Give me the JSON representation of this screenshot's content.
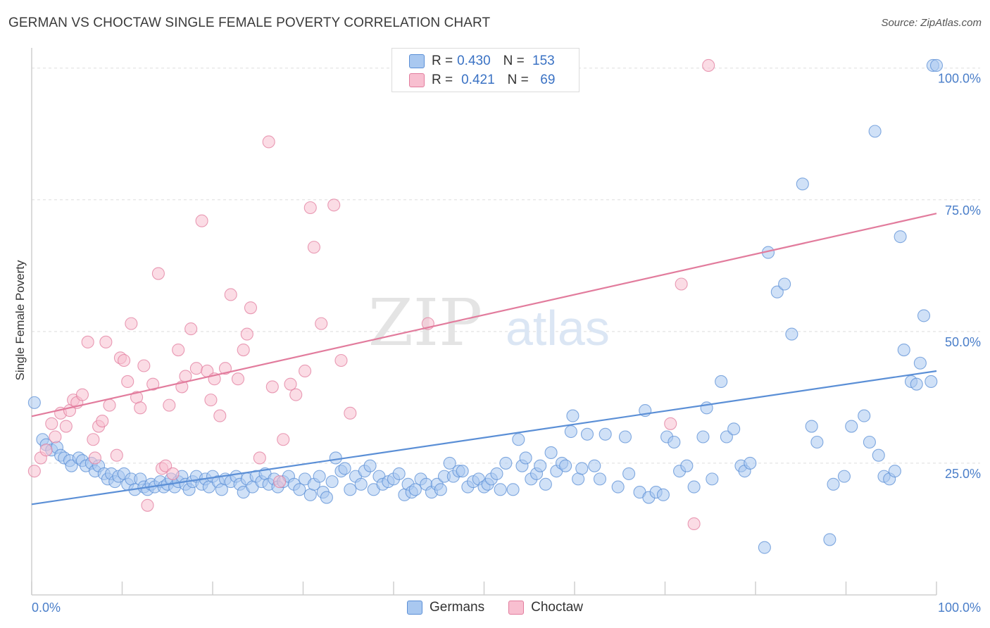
{
  "title": "GERMAN VS CHOCTAW SINGLE FEMALE POVERTY CORRELATION CHART",
  "source": "Source: ZipAtlas.com",
  "watermark": {
    "zip": "ZIP",
    "atlas": "atlas"
  },
  "legend_top": {
    "rows": [
      {
        "r_label": "R = ",
        "r_value": "0.430",
        "n_label": "N = ",
        "n_value": "153",
        "color": "#a9c8f0",
        "border": "#5b8fd6"
      },
      {
        "r_label": "R = ",
        "r_value": "0.421",
        "n_label": "N = ",
        "n_value": " 69",
        "color": "#f8bfd0",
        "border": "#e27c9d"
      }
    ]
  },
  "legend_bottom": [
    {
      "label": "Germans",
      "color": "#a9c8f0",
      "border": "#5b8fd6"
    },
    {
      "label": "Choctaw",
      "color": "#f8bfd0",
      "border": "#e27c9d"
    }
  ],
  "chart_data": {
    "type": "scatter",
    "title": "GERMAN VS CHOCTAW SINGLE FEMALE POVERTY CORRELATION CHART",
    "xlabel": "",
    "ylabel": "Single Female Poverty",
    "xlim": [
      0,
      100
    ],
    "ylim": [
      0,
      102.5
    ],
    "x_tick_labels": [
      "0.0%",
      "100.0%"
    ],
    "y_ticks": [
      25,
      50,
      75,
      100
    ],
    "y_tick_labels": [
      "25.0%",
      "50.0%",
      "75.0%",
      "100.0%"
    ],
    "grid": "horizontal dashed",
    "legend": "top-center",
    "series": [
      {
        "name": "Germans",
        "color": "#5b8fd6",
        "fill": "#a9c8f0",
        "trend": {
          "x": [
            0,
            100
          ],
          "y": [
            17.2,
            42.5
          ]
        },
        "points": [
          [
            0.3,
            36.5
          ],
          [
            1.2,
            29.5
          ],
          [
            1.6,
            28.5
          ],
          [
            2.2,
            27.5
          ],
          [
            2.8,
            28.0
          ],
          [
            3.2,
            26.5
          ],
          [
            3.6,
            26.0
          ],
          [
            4.2,
            25.5
          ],
          [
            4.4,
            24.5
          ],
          [
            5.2,
            26.0
          ],
          [
            5.6,
            25.5
          ],
          [
            6.0,
            24.5
          ],
          [
            6.6,
            25.0
          ],
          [
            7.0,
            23.5
          ],
          [
            7.4,
            24.5
          ],
          [
            8.0,
            23.0
          ],
          [
            8.4,
            22.0
          ],
          [
            8.8,
            23.0
          ],
          [
            9.2,
            21.5
          ],
          [
            9.6,
            22.5
          ],
          [
            10.2,
            23.0
          ],
          [
            10.6,
            21.0
          ],
          [
            11.0,
            22.0
          ],
          [
            11.4,
            20.0
          ],
          [
            12.0,
            22.0
          ],
          [
            12.4,
            20.5
          ],
          [
            12.8,
            20.0
          ],
          [
            13.2,
            21.0
          ],
          [
            13.6,
            20.5
          ],
          [
            14.2,
            21.5
          ],
          [
            14.6,
            20.5
          ],
          [
            15.0,
            21.0
          ],
          [
            15.4,
            22.0
          ],
          [
            15.8,
            20.5
          ],
          [
            16.2,
            21.5
          ],
          [
            16.6,
            22.5
          ],
          [
            17.0,
            21.0
          ],
          [
            17.4,
            20.0
          ],
          [
            17.8,
            21.5
          ],
          [
            18.2,
            22.5
          ],
          [
            18.8,
            21.0
          ],
          [
            19.2,
            22.0
          ],
          [
            19.6,
            20.5
          ],
          [
            20.0,
            22.5
          ],
          [
            20.6,
            21.5
          ],
          [
            21.0,
            20.0
          ],
          [
            21.4,
            22.0
          ],
          [
            22.0,
            21.5
          ],
          [
            22.6,
            22.5
          ],
          [
            23.0,
            21.0
          ],
          [
            23.4,
            19.5
          ],
          [
            23.8,
            22.0
          ],
          [
            24.4,
            20.5
          ],
          [
            24.8,
            22.5
          ],
          [
            25.4,
            21.5
          ],
          [
            25.8,
            23.0
          ],
          [
            26.2,
            21.0
          ],
          [
            26.8,
            22.0
          ],
          [
            27.2,
            20.5
          ],
          [
            27.8,
            21.5
          ],
          [
            28.4,
            22.5
          ],
          [
            29.0,
            21.0
          ],
          [
            29.6,
            20.0
          ],
          [
            30.2,
            22.0
          ],
          [
            30.8,
            19.0
          ],
          [
            31.2,
            21.0
          ],
          [
            31.8,
            22.5
          ],
          [
            32.2,
            19.5
          ],
          [
            32.6,
            18.5
          ],
          [
            33.2,
            21.5
          ],
          [
            33.6,
            26.0
          ],
          [
            34.2,
            23.5
          ],
          [
            34.6,
            24.0
          ],
          [
            35.2,
            20.0
          ],
          [
            35.8,
            22.5
          ],
          [
            36.4,
            21.0
          ],
          [
            36.8,
            23.5
          ],
          [
            37.4,
            24.5
          ],
          [
            37.8,
            20.0
          ],
          [
            38.4,
            22.5
          ],
          [
            38.8,
            21.0
          ],
          [
            39.4,
            21.5
          ],
          [
            40.0,
            22.0
          ],
          [
            40.6,
            23.0
          ],
          [
            41.2,
            19.0
          ],
          [
            41.6,
            21.0
          ],
          [
            42.0,
            19.5
          ],
          [
            42.4,
            20.0
          ],
          [
            43.0,
            22.0
          ],
          [
            43.6,
            21.0
          ],
          [
            44.2,
            19.5
          ],
          [
            44.8,
            21.0
          ],
          [
            45.2,
            20.0
          ],
          [
            45.6,
            22.5
          ],
          [
            46.2,
            25.0
          ],
          [
            46.6,
            22.5
          ],
          [
            47.2,
            23.5
          ],
          [
            47.6,
            23.5
          ],
          [
            48.2,
            20.5
          ],
          [
            48.8,
            21.5
          ],
          [
            49.4,
            22.0
          ],
          [
            50.0,
            20.5
          ],
          [
            50.4,
            21.0
          ],
          [
            50.8,
            22.0
          ],
          [
            51.4,
            23.0
          ],
          [
            51.8,
            20.0
          ],
          [
            52.4,
            25.0
          ],
          [
            53.2,
            20.0
          ],
          [
            53.8,
            29.5
          ],
          [
            54.2,
            24.5
          ],
          [
            54.6,
            26.0
          ],
          [
            55.2,
            22.0
          ],
          [
            55.8,
            23.0
          ],
          [
            56.2,
            24.5
          ],
          [
            56.8,
            21.0
          ],
          [
            57.4,
            27.0
          ],
          [
            58.0,
            23.5
          ],
          [
            58.6,
            25.0
          ],
          [
            59.0,
            24.5
          ],
          [
            59.6,
            31.0
          ],
          [
            59.8,
            34.0
          ],
          [
            60.4,
            22.0
          ],
          [
            60.8,
            24.0
          ],
          [
            61.4,
            30.5
          ],
          [
            62.2,
            24.5
          ],
          [
            62.8,
            22.0
          ],
          [
            63.4,
            30.5
          ],
          [
            64.8,
            20.5
          ],
          [
            65.6,
            30.0
          ],
          [
            66.0,
            23.0
          ],
          [
            67.2,
            19.5
          ],
          [
            67.8,
            35.0
          ],
          [
            68.2,
            18.5
          ],
          [
            69.0,
            19.5
          ],
          [
            69.8,
            19.0
          ],
          [
            70.2,
            30.0
          ],
          [
            71.0,
            29.0
          ],
          [
            71.6,
            23.5
          ],
          [
            72.4,
            24.5
          ],
          [
            73.2,
            20.5
          ],
          [
            74.2,
            30.0
          ],
          [
            74.6,
            35.5
          ],
          [
            75.2,
            22.0
          ],
          [
            76.2,
            40.5
          ],
          [
            76.8,
            30.0
          ],
          [
            77.6,
            31.5
          ],
          [
            78.4,
            24.5
          ],
          [
            78.8,
            23.5
          ],
          [
            79.4,
            25.0
          ],
          [
            81.0,
            9.0
          ],
          [
            81.4,
            65.0
          ],
          [
            82.4,
            57.5
          ],
          [
            83.2,
            59.0
          ],
          [
            84.0,
            49.5
          ],
          [
            85.2,
            78.0
          ],
          [
            86.2,
            32.0
          ],
          [
            86.8,
            29.0
          ],
          [
            88.2,
            10.5
          ],
          [
            88.6,
            21.0
          ],
          [
            89.8,
            22.5
          ],
          [
            90.6,
            32.0
          ],
          [
            92.0,
            34.0
          ],
          [
            92.6,
            29.0
          ],
          [
            93.2,
            88.0
          ],
          [
            93.6,
            26.5
          ],
          [
            94.2,
            22.5
          ],
          [
            94.8,
            22.0
          ],
          [
            95.4,
            23.5
          ],
          [
            96.0,
            68.0
          ],
          [
            96.4,
            46.5
          ],
          [
            97.2,
            40.5
          ],
          [
            97.8,
            40.0
          ],
          [
            98.2,
            44.0
          ],
          [
            98.6,
            53.0
          ],
          [
            99.4,
            40.5
          ],
          [
            99.6,
            100.5
          ],
          [
            100.0,
            100.5
          ]
        ]
      },
      {
        "name": "Choctaw",
        "color": "#e27c9d",
        "fill": "#f8bfd0",
        "trend": {
          "x": [
            0,
            100
          ],
          "y": [
            33.9,
            72.4
          ]
        },
        "points": [
          [
            0.3,
            23.5
          ],
          [
            1.0,
            26.0
          ],
          [
            1.6,
            27.5
          ],
          [
            2.2,
            32.5
          ],
          [
            2.6,
            30.0
          ],
          [
            3.2,
            34.5
          ],
          [
            3.8,
            32.0
          ],
          [
            4.2,
            35.0
          ],
          [
            4.6,
            37.0
          ],
          [
            5.0,
            36.5
          ],
          [
            5.6,
            38.0
          ],
          [
            6.2,
            48.0
          ],
          [
            6.8,
            29.5
          ],
          [
            7.0,
            26.0
          ],
          [
            7.4,
            32.0
          ],
          [
            7.8,
            33.0
          ],
          [
            8.2,
            48.0
          ],
          [
            8.6,
            36.0
          ],
          [
            9.4,
            26.5
          ],
          [
            9.8,
            45.0
          ],
          [
            10.2,
            44.5
          ],
          [
            10.6,
            40.5
          ],
          [
            11.0,
            51.5
          ],
          [
            11.6,
            37.5
          ],
          [
            12.0,
            35.5
          ],
          [
            12.4,
            43.5
          ],
          [
            12.8,
            17.0
          ],
          [
            13.4,
            40.0
          ],
          [
            14.0,
            61.0
          ],
          [
            14.4,
            24.0
          ],
          [
            14.8,
            24.5
          ],
          [
            15.2,
            36.0
          ],
          [
            15.6,
            23.0
          ],
          [
            16.2,
            46.5
          ],
          [
            16.6,
            39.5
          ],
          [
            17.0,
            41.5
          ],
          [
            17.6,
            50.5
          ],
          [
            18.2,
            43.0
          ],
          [
            18.8,
            71.0
          ],
          [
            19.4,
            42.5
          ],
          [
            19.8,
            37.0
          ],
          [
            20.2,
            41.0
          ],
          [
            20.8,
            34.0
          ],
          [
            21.4,
            43.0
          ],
          [
            22.0,
            57.0
          ],
          [
            22.8,
            41.0
          ],
          [
            23.4,
            46.5
          ],
          [
            23.8,
            49.5
          ],
          [
            24.2,
            54.5
          ],
          [
            25.2,
            26.0
          ],
          [
            26.2,
            86.0
          ],
          [
            26.6,
            39.5
          ],
          [
            27.4,
            21.5
          ],
          [
            27.8,
            29.5
          ],
          [
            28.6,
            40.0
          ],
          [
            29.2,
            38.0
          ],
          [
            30.2,
            42.5
          ],
          [
            30.8,
            73.5
          ],
          [
            31.2,
            66.0
          ],
          [
            32.0,
            51.5
          ],
          [
            33.4,
            74.0
          ],
          [
            34.2,
            44.5
          ],
          [
            35.2,
            34.5
          ],
          [
            43.8,
            51.5
          ],
          [
            46.8,
            100.5
          ],
          [
            70.6,
            32.5
          ],
          [
            71.8,
            59.0
          ],
          [
            73.2,
            13.5
          ],
          [
            74.8,
            100.5
          ]
        ]
      }
    ]
  }
}
